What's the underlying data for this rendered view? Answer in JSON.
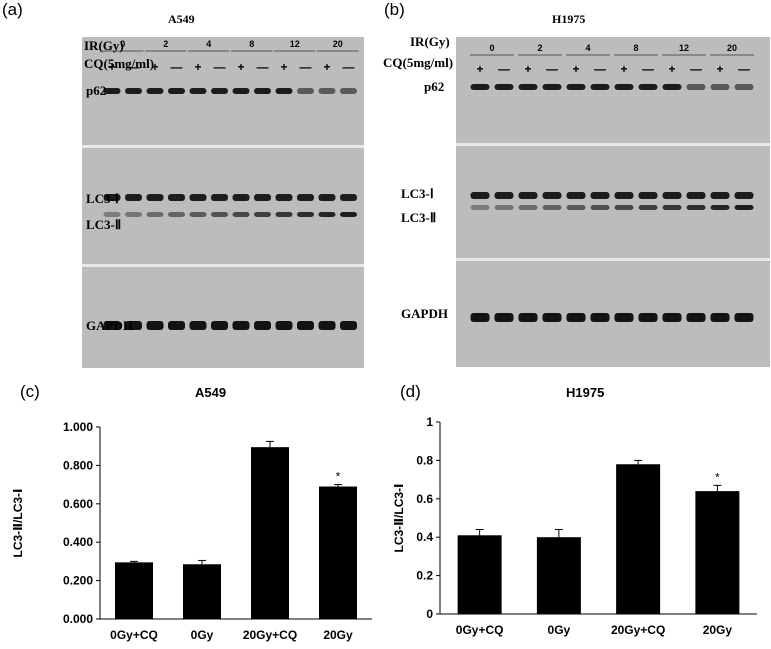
{
  "panels": {
    "a": {
      "letter": "(a)",
      "cell_line": "A549",
      "ir_label": "IR(Gy)",
      "cq_label": "CQ(5mg/ml)",
      "doses": [
        "0",
        "2",
        "4",
        "8",
        "12",
        "20"
      ],
      "cq_signs": [
        "+",
        "—",
        "+",
        "—",
        "+",
        "—",
        "+",
        "—",
        "+",
        "—",
        "+",
        "—"
      ],
      "bands": [
        "p62",
        "LC3-Ⅰ",
        "LC3-Ⅱ",
        "GAPDH"
      ]
    },
    "b": {
      "letter": "(b)",
      "cell_line": "H1975",
      "ir_label": "IR(Gy)",
      "cq_label": "CQ(5mg/ml)",
      "doses": [
        "0",
        "2",
        "4",
        "8",
        "12",
        "20"
      ],
      "cq_signs": [
        "+",
        "—",
        "+",
        "—",
        "+",
        "—",
        "+",
        "—",
        "+",
        "—",
        "+",
        "—"
      ],
      "bands": [
        "p62",
        "LC3-Ⅰ",
        "LC3-Ⅱ",
        "GAPDH"
      ]
    }
  },
  "chart_data": [
    {
      "letter": "(c)",
      "type": "bar",
      "title": "A549",
      "ylabel": "LC3-Ⅱ/LC3-Ⅰ",
      "categories": [
        "0Gy+CQ",
        "0Gy",
        "20Gy+CQ",
        "20Gy"
      ],
      "values": [
        0.295,
        0.285,
        0.895,
        0.69
      ],
      "errors": [
        0.005,
        0.02,
        0.03,
        0.01
      ],
      "annotations": [
        "",
        "",
        "",
        "*"
      ],
      "ylim": [
        0,
        1
      ],
      "yticks": [
        "0.000",
        "0.200",
        "0.400",
        "0.600",
        "0.800",
        "1.000"
      ],
      "bar_color": "#000000",
      "grid": false
    },
    {
      "letter": "(d)",
      "type": "bar",
      "title": "H1975",
      "ylabel": "LC3-Ⅱ/LC3-Ⅰ",
      "categories": [
        "0Gy+CQ",
        "0Gy",
        "20Gy+CQ",
        "20Gy"
      ],
      "values": [
        0.41,
        0.4,
        0.78,
        0.64
      ],
      "errors": [
        0.03,
        0.04,
        0.02,
        0.03
      ],
      "annotations": [
        "",
        "",
        "",
        "*"
      ],
      "ylim": [
        0,
        1
      ],
      "yticks": [
        "0",
        "0.2",
        "0.4",
        "0.6",
        "0.8",
        "1"
      ],
      "bar_color": "#000000",
      "grid": false
    }
  ]
}
